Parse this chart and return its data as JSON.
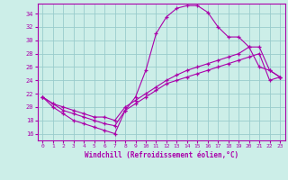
{
  "xlabel": "Windchill (Refroidissement éolien,°C)",
  "xlim": [
    -0.5,
    23.5
  ],
  "ylim": [
    15.0,
    35.5
  ],
  "yticks": [
    16,
    18,
    20,
    22,
    24,
    26,
    28,
    30,
    32,
    34
  ],
  "xticks": [
    0,
    1,
    2,
    3,
    4,
    5,
    6,
    7,
    8,
    9,
    10,
    11,
    12,
    13,
    14,
    15,
    16,
    17,
    18,
    19,
    20,
    21,
    22,
    23
  ],
  "bg_color": "#cceee8",
  "line_color": "#aa00aa",
  "grid_color": "#99cccc",
  "series": [
    [
      21.5,
      20.0,
      19.0,
      18.0,
      17.5,
      17.0,
      16.5,
      16.0,
      19.5,
      21.5,
      25.5,
      31.0,
      33.5,
      34.8,
      35.2,
      35.2,
      34.2,
      32.0,
      30.5,
      30.5,
      29.0,
      26.0,
      25.5,
      24.5
    ],
    [
      21.5,
      20.5,
      20.0,
      19.5,
      19.0,
      18.5,
      18.5,
      18.0,
      20.0,
      21.0,
      22.0,
      23.0,
      24.0,
      24.8,
      25.5,
      26.0,
      26.5,
      27.0,
      27.5,
      28.0,
      29.0,
      29.0,
      25.5,
      24.5
    ],
    [
      21.5,
      20.5,
      19.5,
      19.0,
      18.5,
      18.0,
      17.5,
      17.2,
      19.5,
      20.5,
      21.5,
      22.5,
      23.5,
      24.0,
      24.5,
      25.0,
      25.5,
      26.0,
      26.5,
      27.0,
      27.5,
      28.0,
      24.0,
      24.5
    ]
  ]
}
